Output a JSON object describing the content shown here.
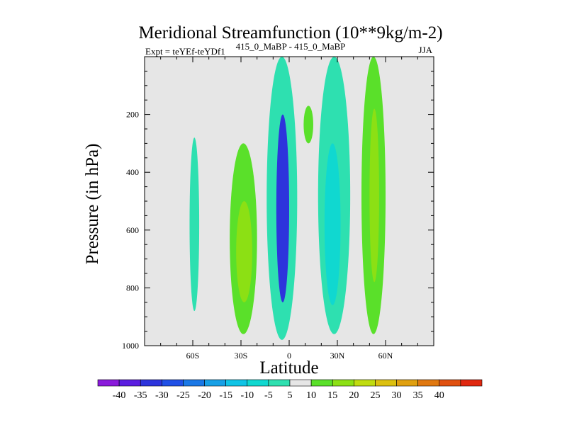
{
  "chart_data": {
    "type": "contour",
    "title": "Meridional Streamfunction (10**9kg/m-2)",
    "subtitle_left": "Expt = teYEf-teYDf1",
    "subtitle_center": "415_0_MaBP - 415_0_MaBP",
    "subtitle_right": "JJA",
    "xlabel": "Latitude",
    "ylabel": "Pressure (in hPa)",
    "xlim": [
      -90,
      90
    ],
    "ylim": [
      1000,
      0
    ],
    "x_ticks": [
      {
        "value": -60,
        "label": "60S"
      },
      {
        "value": -30,
        "label": "30S"
      },
      {
        "value": 0,
        "label": "0"
      },
      {
        "value": 30,
        "label": "30N"
      },
      {
        "value": 60,
        "label": "60N"
      }
    ],
    "y_ticks": [
      {
        "value": 200,
        "label": "200"
      },
      {
        "value": 400,
        "label": "400"
      },
      {
        "value": 600,
        "label": "600"
      },
      {
        "value": 800,
        "label": "800"
      },
      {
        "value": 1000,
        "label": "1000"
      }
    ],
    "background_color": "#e6e6e6",
    "colorbar": {
      "labels": [
        "-40",
        "-35",
        "-30",
        "-25",
        "-20",
        "-15",
        "-10",
        "-5",
        "5",
        "10",
        "15",
        "20",
        "25",
        "30",
        "35",
        "40"
      ],
      "colors": [
        "#8a1adb",
        "#5b1ee0",
        "#2d34dc",
        "#2050e6",
        "#1a78e6",
        "#17a0e6",
        "#10c4e6",
        "#10d8d0",
        "#2ee0b0",
        "#e6e6e6",
        "#5ae02a",
        "#8ce014",
        "#c0dc10",
        "#dcc010",
        "#e0a010",
        "#e07810",
        "#e05010",
        "#e02810"
      ]
    },
    "contours": [
      {
        "name": "sh-mid-neg",
        "level": -5,
        "lon_range": [
          -62,
          -56
        ],
        "p_top": 280,
        "p_bottom": 880,
        "color": "#2ee0b0"
      },
      {
        "name": "sh-pos-outer",
        "level": 5,
        "lon_range": [
          -37,
          -20
        ],
        "p_top": 300,
        "p_bottom": 960,
        "color": "#5ae02a"
      },
      {
        "name": "sh-pos-inner",
        "level": 10,
        "lon_range": [
          -33,
          -23
        ],
        "p_top": 500,
        "p_bottom": 850,
        "color": "#8ce014"
      },
      {
        "name": "eq-neg-outer",
        "level": -5,
        "lon_range": [
          -14,
          5
        ],
        "p_top": 0,
        "p_bottom": 980,
        "color": "#2ee0b0"
      },
      {
        "name": "eq-neg-core",
        "level": -35,
        "lon_range": [
          -8,
          0
        ],
        "p_top": 200,
        "p_bottom": 850,
        "color": "#2d34dc"
      },
      {
        "name": "nh-small-pos",
        "level": 5,
        "lon_range": [
          9,
          15
        ],
        "p_top": 170,
        "p_bottom": 300,
        "color": "#5ae02a"
      },
      {
        "name": "nh-neg",
        "level": -5,
        "lon_range": [
          18,
          38
        ],
        "p_top": 0,
        "p_bottom": 960,
        "color": "#2ee0b0"
      },
      {
        "name": "nh-neg-inner",
        "level": -10,
        "lon_range": [
          22,
          32
        ],
        "p_top": 300,
        "p_bottom": 860,
        "color": "#10d8d0"
      },
      {
        "name": "nh-pos",
        "level": 5,
        "lon_range": [
          45,
          60
        ],
        "p_top": 0,
        "p_bottom": 960,
        "color": "#5ae02a"
      },
      {
        "name": "nh-pos-inner",
        "level": 10,
        "lon_range": [
          50,
          56
        ],
        "p_top": 180,
        "p_bottom": 780,
        "color": "#8ce014"
      }
    ]
  }
}
